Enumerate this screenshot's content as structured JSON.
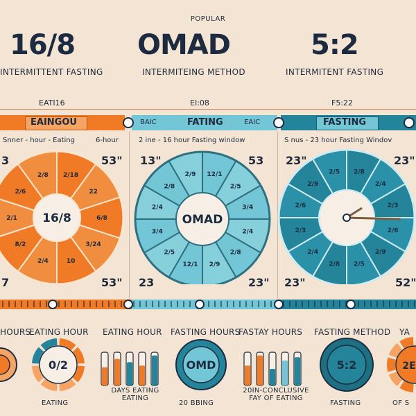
{
  "header": {
    "popular": "POPULAR",
    "titles": [
      "16/8",
      "OMAD",
      "5:2"
    ],
    "subtitles": [
      "INTERMITTENT FASTING",
      "INTERMITEING METHOD",
      "INTERMITENT FASTING"
    ]
  },
  "bands": {
    "labels": [
      "EATI16",
      "EI:08",
      "F5:22"
    ],
    "bar_labels": [
      "EAINGOU",
      "BAIC",
      "FATING",
      "EAIC",
      "FASTING"
    ],
    "row_texts": [
      "Snner - hour - Eating",
      "6-hour",
      "2 ine - 16 hour Fasting window",
      "S nus - 23 hour Fasting Windov"
    ],
    "numbers": [
      "3",
      "53\"",
      "13\"",
      "53",
      "23\"",
      "23\"",
      "7",
      "53\"",
      "23",
      "23\"",
      "23\"",
      "52\""
    ]
  },
  "wheels": {
    "centers": [
      "16/8",
      "OMAD"
    ],
    "segment_text_a": [
      "2/18",
      "22",
      "6/8",
      "3/24",
      "10",
      "2/4",
      "8/2",
      "2/1",
      "2/6",
      "2/8"
    ],
    "segment_text_b": [
      "12/1",
      "2/5",
      "3/4",
      "2/4",
      "2/8",
      "2/9"
    ],
    "segment_text_c": [
      "2/8",
      "2/4",
      "2/3",
      "2/6",
      "2/9",
      "2/5"
    ]
  },
  "bottom": {
    "labels": [
      "HOURS",
      "EATING HOUR",
      "EATING HOUR",
      "FASTING HOURS",
      "FASTAY HOURS",
      "FASTING METHOD",
      "YA"
    ],
    "dial_labels": [
      "0/2",
      "OMD",
      "5:2",
      "2E"
    ],
    "footer": [
      "EATING",
      "DAYS EATING EATING",
      "20 BBING",
      "20IN-CONCLUSIVE FAY OF EATING",
      "FASTING",
      "OF S"
    ]
  },
  "colors": {
    "orange": "#f07a25",
    "orange_light": "#f6a463",
    "teal": "#23849a",
    "teal_light": "#73c6d5",
    "navy": "#1d2b40",
    "cream": "#f3e4d4"
  }
}
